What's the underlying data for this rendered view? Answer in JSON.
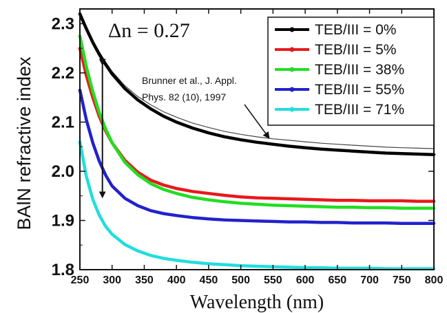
{
  "chart_data": {
    "type": "line",
    "title": "",
    "xlabel": "Wavelength (nm)",
    "ylabel": "BAlN refractive index",
    "xlim": [
      250,
      800
    ],
    "ylim": [
      1.8,
      2.33
    ],
    "xticks": [
      "250",
      "300",
      "350",
      "400",
      "450",
      "500",
      "550",
      "600",
      "650",
      "700",
      "750",
      "800"
    ],
    "yticks": [
      "1.8",
      "1.9",
      "2.0",
      "2.1",
      "2.2",
      "2.3"
    ],
    "x": [
      250,
      260,
      270,
      280,
      290,
      300,
      320,
      340,
      360,
      380,
      400,
      425,
      450,
      475,
      500,
      525,
      550,
      575,
      600,
      625,
      650,
      675,
      700,
      725,
      750,
      775,
      800
    ],
    "legend": {
      "placement": "top-right"
    },
    "series": [
      {
        "name": "TEB/III = 0%",
        "color": "#000000",
        "values": [
          2.32,
          2.29,
          2.262,
          2.238,
          2.217,
          2.198,
          2.168,
          2.145,
          2.127,
          2.112,
          2.1,
          2.088,
          2.078,
          2.07,
          2.064,
          2.059,
          2.055,
          2.051,
          2.048,
          2.045,
          2.043,
          2.041,
          2.039,
          2.037,
          2.036,
          2.035,
          2.034
        ]
      },
      {
        "name": "TEB/III = 5%",
        "color": "#e8191c",
        "values": [
          2.25,
          2.195,
          2.15,
          2.112,
          2.082,
          2.058,
          2.022,
          1.998,
          1.982,
          1.972,
          1.965,
          1.959,
          1.955,
          1.951,
          1.948,
          1.946,
          1.945,
          1.944,
          1.943,
          1.942,
          1.941,
          1.941,
          1.94,
          1.94,
          1.94,
          1.939,
          1.939
        ]
      },
      {
        "name": "TEB/III = 38%",
        "color": "#22dd22",
        "values": [
          2.275,
          2.213,
          2.162,
          2.12,
          2.086,
          2.058,
          2.018,
          1.993,
          1.975,
          1.963,
          1.955,
          1.947,
          1.942,
          1.938,
          1.935,
          1.933,
          1.931,
          1.93,
          1.929,
          1.928,
          1.927,
          1.927,
          1.926,
          1.926,
          1.925,
          1.925,
          1.925
        ]
      },
      {
        "name": "TEB/III = 55%",
        "color": "#2222cc",
        "values": [
          2.165,
          2.105,
          2.058,
          2.021,
          1.992,
          1.97,
          1.945,
          1.93,
          1.92,
          1.914,
          1.91,
          1.906,
          1.903,
          1.901,
          1.9,
          1.899,
          1.898,
          1.897,
          1.897,
          1.896,
          1.896,
          1.895,
          1.895,
          1.895,
          1.894,
          1.894,
          1.894
        ]
      },
      {
        "name": "TEB/III = 71%",
        "color": "#22dddd",
        "values": [
          2.06,
          1.99,
          1.943,
          1.911,
          1.888,
          1.872,
          1.851,
          1.838,
          1.829,
          1.823,
          1.819,
          1.815,
          1.812,
          1.81,
          1.808,
          1.807,
          1.806,
          1.805,
          1.804,
          1.804,
          1.803,
          1.803,
          1.803,
          1.802,
          1.802,
          1.802,
          1.802
        ]
      }
    ],
    "reference_curve": {
      "color": "#444444",
      "values": [
        2.323,
        2.294,
        2.267,
        2.243,
        2.222,
        2.203,
        2.174,
        2.152,
        2.135,
        2.121,
        2.11,
        2.098,
        2.089,
        2.081,
        2.075,
        2.07,
        2.066,
        2.063,
        2.06,
        2.057,
        2.055,
        2.053,
        2.051,
        2.049,
        2.048,
        2.047,
        2.046
      ]
    },
    "annotations": {
      "delta_label": "Δn = 0.27",
      "delta_arrow": {
        "x": 285,
        "y_top": 2.22,
        "y_bottom": 1.945
      },
      "reference_line1": "Brunner et al., J. Appl.",
      "reference_line2": "Phys. 82 (10), 1997",
      "reference_arrow_target": {
        "x": 550,
        "y": 2.064
      }
    }
  }
}
